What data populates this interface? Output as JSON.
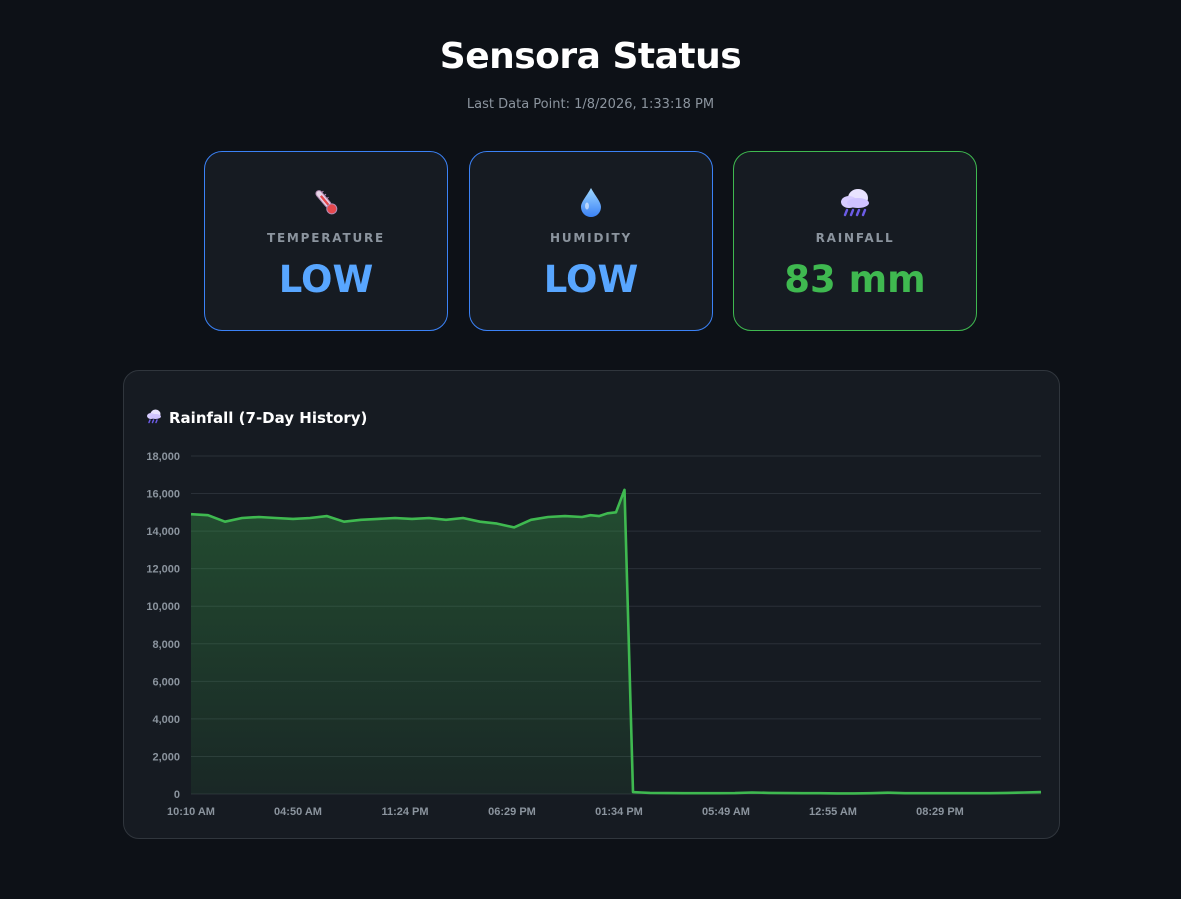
{
  "header": {
    "title": "Sensora Status",
    "last_data_point": "Last Data Point: 1/8/2026, 1:33:18 PM"
  },
  "cards": [
    {
      "icon": "thermometer-icon",
      "label": "TEMPERATURE",
      "value": "LOW",
      "color": "#58a6ff"
    },
    {
      "icon": "droplet-icon",
      "label": "HUMIDITY",
      "value": "LOW",
      "color": "#58a6ff"
    },
    {
      "icon": "rain-cloud-icon",
      "label": "RAINFALL",
      "value": "83 mm",
      "color": "#3fb950"
    }
  ],
  "chart_panel": {
    "icon": "rain-cloud-icon",
    "title": "Rainfall (7-Day History)"
  },
  "chart_data": {
    "type": "area",
    "title": "Rainfall (7-Day History)",
    "color": "#3fb950",
    "ylim": [
      0,
      18000
    ],
    "y_ticks": [
      "0",
      "2,000",
      "4,000",
      "6,000",
      "8,000",
      "10,000",
      "12,000",
      "14,000",
      "16,000",
      "18,000"
    ],
    "x_ticks": [
      "10:10 AM",
      "04:50 AM",
      "11:24 PM",
      "06:29 PM",
      "01:34 PM",
      "05:49 AM",
      "12:55 AM",
      "08:29 PM"
    ],
    "grid": true,
    "x_index": [
      0,
      2,
      4,
      6,
      8,
      10,
      12,
      14,
      16,
      18,
      20,
      22,
      24,
      26,
      28,
      30,
      32,
      34,
      36,
      38,
      40,
      42,
      44,
      46,
      47,
      48,
      49,
      50,
      51,
      52,
      53,
      54,
      56,
      58,
      60,
      62,
      64,
      66,
      68,
      70,
      72,
      74,
      76,
      78,
      80,
      82,
      84,
      86,
      88,
      90,
      92,
      94,
      96,
      98,
      100
    ],
    "values": [
      14900,
      14850,
      14500,
      14700,
      14750,
      14700,
      14650,
      14700,
      14800,
      14500,
      14600,
      14650,
      14700,
      14650,
      14700,
      14600,
      14700,
      14500,
      14400,
      14200,
      14600,
      14750,
      14800,
      14750,
      14850,
      14800,
      14950,
      15000,
      16200,
      100,
      80,
      60,
      50,
      40,
      40,
      40,
      50,
      80,
      60,
      50,
      40,
      40,
      30,
      30,
      40,
      70,
      40,
      40,
      40,
      40,
      40,
      40,
      60,
      80,
      100
    ]
  }
}
